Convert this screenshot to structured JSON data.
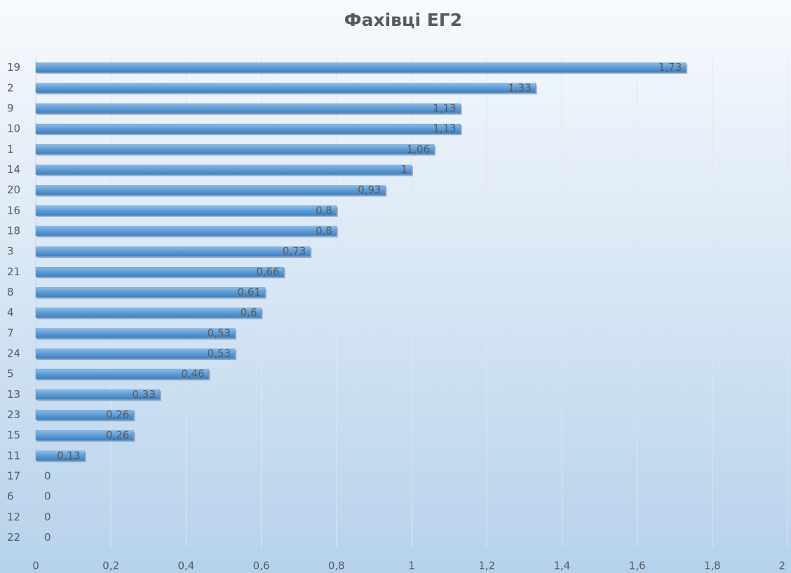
{
  "chart_data": {
    "type": "bar",
    "orientation": "horizontal",
    "title": "Фахівці ЕГ2",
    "categories": [
      "19",
      "2",
      "9",
      "10",
      "1",
      "14",
      "20",
      "16",
      "18",
      "3",
      "21",
      "8",
      "4",
      "7",
      "24",
      "5",
      "13",
      "23",
      "15",
      "11",
      "17",
      "6",
      "12",
      "22"
    ],
    "values": [
      1.73,
      1.33,
      1.13,
      1.13,
      1.06,
      1,
      0.93,
      0.8,
      0.8,
      0.73,
      0.66,
      0.61,
      0.6,
      0.53,
      0.53,
      0.46,
      0.33,
      0.26,
      0.26,
      0.13,
      0,
      0,
      0,
      0
    ],
    "value_labels": [
      "1,73",
      "1,33",
      "1,13",
      "1,13",
      "1,06",
      "1",
      "0,93",
      "0,8",
      "0,8",
      "0,73",
      "0,66",
      "0,61",
      "0,6",
      "0,53",
      "0,53",
      "0,46",
      "0,33",
      "0,26",
      "0,26",
      "0,13",
      "0",
      "0",
      "0",
      "0"
    ],
    "color": "#5b9bd5",
    "xlim": [
      0,
      2
    ],
    "xticks": [
      0,
      {
        "value": 0.2,
        "label": "0,2"
      },
      {
        "value": 0.4,
        "label": "0,4"
      },
      {
        "value": 0.6,
        "label": "0,6"
      },
      {
        "value": 0.8,
        "label": "0,8"
      },
      1,
      {
        "value": 1.2,
        "label": "1,2"
      },
      {
        "value": 1.4,
        "label": "1,4"
      },
      {
        "value": 1.6,
        "label": "1,6"
      },
      {
        "value": 1.8,
        "label": "1,8"
      },
      2
    ],
    "grid": true
  }
}
